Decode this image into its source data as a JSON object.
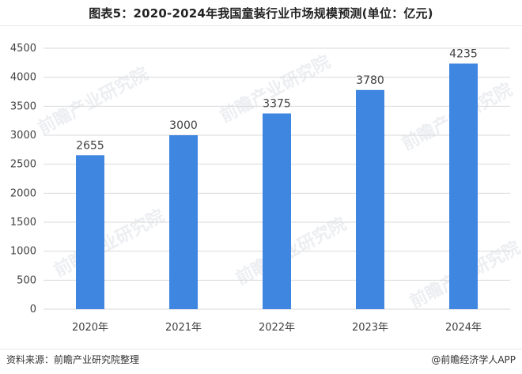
{
  "title": "图表5：2020-2024年我国童装行业市场规模预测(单位：亿元)",
  "source": "资料来源：前瞻产业研究院整理",
  "credit": "@前瞻经济学人APP",
  "watermark": "前瞻产业研究院",
  "colors": {
    "bar": "#3F86E0",
    "grid": "#D9D9D9",
    "text": "#404040"
  },
  "chart_data": {
    "type": "bar",
    "title": "图表5：2020-2024年我国童装行业市场规模预测(单位：亿元)",
    "categories": [
      "2020年",
      "2021年",
      "2022年",
      "2023年",
      "2024年"
    ],
    "values": [
      2655,
      3000,
      3375,
      3780,
      4235
    ],
    "data_labels": [
      "2655",
      "3000",
      "3375",
      "3780",
      "4235"
    ],
    "ylim": [
      0,
      4500
    ],
    "yticks": [
      "0",
      "500",
      "1000",
      "1500",
      "2000",
      "2500",
      "3000",
      "3500",
      "4000",
      "4500"
    ],
    "xlabel": "",
    "ylabel": "",
    "grid": true,
    "legend": "none"
  }
}
